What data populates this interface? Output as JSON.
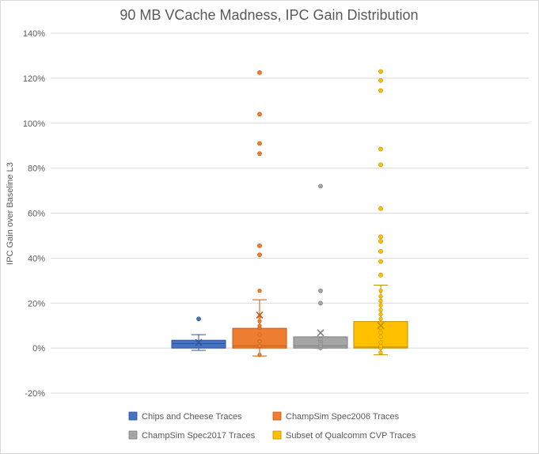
{
  "chart_data": {
    "type": "box",
    "title": "90 MB VCache Madness, IPC Gain Distribution",
    "ylabel": "IPC Gain over Baseline L3",
    "xlabel": "",
    "ylim": [
      -20,
      140
    ],
    "yticks": [
      -20,
      0,
      20,
      40,
      60,
      80,
      100,
      120,
      140
    ],
    "ytick_suffix": "%",
    "grid": true,
    "legend_position": "bottom",
    "series": [
      {
        "name": "Chips and Cheese Traces",
        "color": "#4472c4",
        "edge": "#2f5597",
        "whisker_low": -1,
        "q1": 0,
        "median": 2,
        "q3": 3.5,
        "whisker_high": 6,
        "mean": 2.5,
        "points": [],
        "outliers": [
          13
        ]
      },
      {
        "name": "ChampSim Spec2006 Traces",
        "color": "#ed7d31",
        "edge": "#c55a11",
        "whisker_low": -3.5,
        "q1": 0,
        "median": 1,
        "q3": 8.8,
        "whisker_high": 21.5,
        "mean": 14.7,
        "points": [
          -3,
          1,
          3,
          6,
          9,
          10,
          12,
          14,
          25.5
        ],
        "outliers": [
          41.5,
          45.5,
          86.5,
          91,
          104,
          122.5
        ]
      },
      {
        "name": "ChampSim Spec2017 Traces",
        "color": "#a5a5a5",
        "edge": "#7f7f7f",
        "whisker_low": 0,
        "q1": 0,
        "median": 1,
        "q3": 5,
        "whisker_high": 5,
        "mean": 6.8,
        "points": [
          0,
          1,
          2,
          3,
          4
        ],
        "outliers": [
          20,
          25.5,
          72
        ]
      },
      {
        "name": "Subset of Qualcomm CVP Traces",
        "color": "#ffc000",
        "edge": "#bf9000",
        "whisker_low": -3,
        "q1": 0,
        "median": 0.5,
        "q3": 11.8,
        "whisker_high": 28,
        "mean": 10,
        "points": [
          -2,
          0,
          1,
          2.5,
          5,
          7,
          9,
          11,
          13,
          15,
          17,
          19,
          21,
          23,
          25.5
        ],
        "outliers": [
          32.5,
          38.5,
          43,
          47.5,
          49.5,
          62,
          81.5,
          88.5,
          114.5,
          119,
          123
        ]
      }
    ]
  }
}
